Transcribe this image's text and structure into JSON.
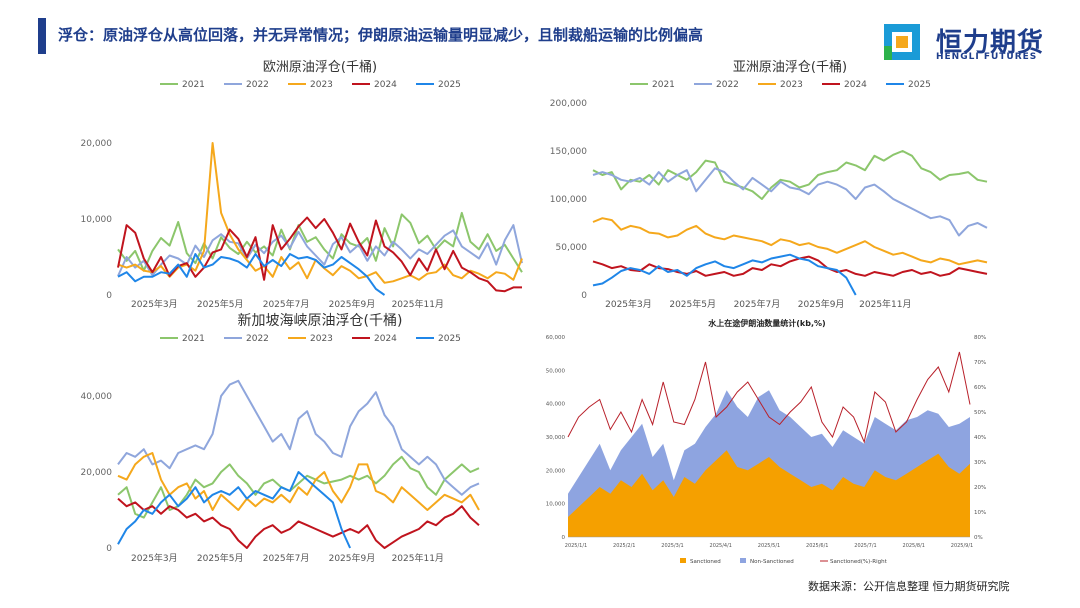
{
  "header": {
    "headline": "浮仓：原油浮仓从高位回落，并无异常情况；伊朗原油运输量明显减少，且制裁船运输的比例偏高",
    "logo_text": "恒力期货",
    "logo_sub": "HENGLI FUTURES"
  },
  "footer": {
    "source": "数据来源：公开信息整理  恒力期货研究院"
  },
  "colors": {
    "2021": "#8cc66c",
    "2022": "#8fa6dc",
    "2023": "#f5a81c",
    "2024": "#c0141e",
    "2025": "#1f86e8",
    "brand": "#1f3e8c",
    "sanctioned": "#f5a000",
    "non_sanctioned": "#8ea4e0",
    "ratio": "#b8202a"
  },
  "chart_data": [
    {
      "id": "europe",
      "type": "line",
      "title": "欧洲原油浮仓(千桶)",
      "yticks": [
        "0",
        "10,000",
        "20,000"
      ],
      "ylim": [
        0,
        20000
      ],
      "xticks": [
        "2025年3月",
        "2025年5月",
        "2025年7月",
        "2025年9月",
        "2025年11月"
      ],
      "series": [
        {
          "name": "2021",
          "values": [
            6000,
            4500,
            5800,
            3200,
            5800,
            7500,
            6500,
            9600,
            5500,
            4200,
            6800,
            4800,
            7600,
            6200,
            5400,
            7000,
            5600,
            6400,
            5200,
            8600,
            6000,
            9200,
            7000,
            7600,
            6000,
            4800,
            8000,
            6800,
            6400,
            7500,
            4500,
            8800,
            6400,
            10600,
            9500,
            6800,
            7800,
            6000,
            7200,
            6400,
            10800,
            7000,
            6000,
            8000,
            5800,
            6600,
            4800,
            3000
          ]
        },
        {
          "name": "2022",
          "values": [
            2500,
            5000,
            3600,
            4500,
            2600,
            4000,
            5200,
            4800,
            4000,
            6500,
            5000,
            7200,
            8000,
            7000,
            6800,
            4800,
            6600,
            5500,
            7000,
            7800,
            6200,
            8300,
            6400,
            5200,
            4000,
            6700,
            7600,
            5600,
            6600,
            4500,
            6400,
            5200,
            7000,
            6000,
            4800,
            6000,
            5400,
            6600,
            7800,
            8500,
            6400,
            5600,
            4800,
            6800,
            4000,
            7200,
            9200,
            4200
          ]
        },
        {
          "name": "2023",
          "values": [
            4000,
            3600,
            4000,
            3200,
            3000,
            3800,
            2400,
            3600,
            4000,
            3200,
            5800,
            20000,
            10800,
            8000,
            6000,
            4600,
            3200,
            3800,
            2400,
            5000,
            3400,
            4300,
            2200,
            4600,
            3500,
            2600,
            3800,
            3200,
            2200,
            2500,
            3000,
            1600,
            1800,
            2200,
            2600,
            2000,
            2800,
            3000,
            4000,
            2600,
            2200,
            3200,
            2800,
            2200,
            3000,
            2800,
            2000,
            4800
          ]
        },
        {
          "name": "2024",
          "values": [
            3600,
            9200,
            8200,
            4800,
            3000,
            5000,
            2500,
            3800,
            4200,
            2400,
            3600,
            5600,
            6000,
            8600,
            7400,
            5000,
            7600,
            2000,
            9200,
            6000,
            7400,
            9000,
            10200,
            8800,
            10000,
            8200,
            6000,
            9400,
            7000,
            5200,
            9800,
            6400,
            5600,
            4400,
            2600,
            4800,
            3200,
            6000,
            3400,
            5800,
            3600,
            3000,
            2200,
            1800,
            600,
            500,
            1000,
            1000
          ]
        },
        {
          "name": "2025",
          "values": [
            2400,
            3000,
            1800,
            2400,
            2400,
            3000,
            2800,
            4000,
            2400,
            5400,
            3600,
            4000,
            5000,
            4800,
            4400,
            3600,
            5400,
            3800,
            4600,
            3800,
            5400,
            4800,
            5000,
            4600,
            3600,
            4000,
            5000,
            4200,
            3400,
            2400,
            800,
            0
          ]
        }
      ]
    },
    {
      "id": "asia",
      "type": "line",
      "title": "亚洲原油浮仓(千桶)",
      "yticks": [
        "0",
        "50,000",
        "100,000",
        "150,000",
        "200,000"
      ],
      "ylim": [
        0,
        200000
      ],
      "xticks": [
        "2025年3月",
        "2025年5月",
        "2025年7月",
        "2025年9月",
        "2025年11月"
      ],
      "series": [
        {
          "name": "2021",
          "values": [
            130000,
            125000,
            128000,
            110000,
            120000,
            118000,
            125000,
            115000,
            130000,
            125000,
            120000,
            128000,
            140000,
            138000,
            118000,
            115000,
            112000,
            108000,
            100000,
            112000,
            120000,
            118000,
            112000,
            115000,
            125000,
            128000,
            130000,
            138000,
            135000,
            130000,
            145000,
            140000,
            146000,
            150000,
            145000,
            132000,
            128000,
            120000,
            125000,
            126000,
            128000,
            120000,
            118000
          ]
        },
        {
          "name": "2022",
          "values": [
            125000,
            128000,
            125000,
            120000,
            118000,
            122000,
            115000,
            128000,
            118000,
            125000,
            130000,
            108000,
            120000,
            132000,
            128000,
            118000,
            110000,
            122000,
            115000,
            108000,
            118000,
            112000,
            110000,
            105000,
            115000,
            118000,
            115000,
            110000,
            100000,
            112000,
            115000,
            108000,
            100000,
            95000,
            90000,
            85000,
            80000,
            82000,
            78000,
            62000,
            72000,
            75000,
            70000
          ]
        },
        {
          "name": "2023",
          "values": [
            76000,
            80000,
            78000,
            68000,
            72000,
            70000,
            65000,
            64000,
            60000,
            62000,
            68000,
            72000,
            64000,
            60000,
            58000,
            62000,
            60000,
            58000,
            56000,
            52000,
            58000,
            56000,
            52000,
            54000,
            50000,
            48000,
            44000,
            48000,
            52000,
            56000,
            50000,
            46000,
            42000,
            44000,
            40000,
            36000,
            34000,
            38000,
            36000,
            32000,
            34000,
            36000,
            34000
          ]
        },
        {
          "name": "2024",
          "values": [
            35000,
            32000,
            28000,
            30000,
            26000,
            25000,
            32000,
            28000,
            27000,
            24000,
            22000,
            25000,
            20000,
            22000,
            24000,
            20000,
            22000,
            28000,
            26000,
            32000,
            30000,
            35000,
            38000,
            40000,
            36000,
            28000,
            24000,
            26000,
            22000,
            20000,
            24000,
            22000,
            20000,
            24000,
            26000,
            22000,
            24000,
            20000,
            22000,
            28000,
            26000,
            24000,
            22000
          ]
        },
        {
          "name": "2025",
          "values": [
            10000,
            12000,
            18000,
            25000,
            28000,
            26000,
            22000,
            30000,
            24000,
            26000,
            20000,
            28000,
            32000,
            35000,
            30000,
            28000,
            32000,
            36000,
            34000,
            38000,
            40000,
            42000,
            38000,
            36000,
            30000,
            28000,
            26000,
            18000,
            0
          ]
        }
      ]
    },
    {
      "id": "singapore",
      "type": "line",
      "title": "新加坡海峡原油浮仓(千桶)",
      "yticks": [
        "0",
        "20,000",
        "40,000"
      ],
      "ylim": [
        0,
        40000
      ],
      "xticks": [
        "2025年3月",
        "2025年5月",
        "2025年7月",
        "2025年9月",
        "2025年11月"
      ],
      "series": [
        {
          "name": "2021",
          "values": [
            14000,
            16000,
            9000,
            8000,
            12000,
            16000,
            10000,
            11000,
            14000,
            18000,
            16000,
            17000,
            20000,
            22000,
            19000,
            17000,
            14000,
            17000,
            18000,
            16000,
            15000,
            17000,
            19000,
            18000,
            17000,
            17500,
            18000,
            19000,
            18000,
            19000,
            17000,
            19000,
            22000,
            24000,
            21000,
            20000,
            16000,
            14000,
            18000,
            20000,
            22000,
            20000,
            21000
          ]
        },
        {
          "name": "2022",
          "values": [
            22000,
            25000,
            24000,
            26000,
            22000,
            23000,
            21000,
            25000,
            26000,
            27000,
            26000,
            30000,
            40000,
            43000,
            44000,
            40000,
            36000,
            32000,
            28000,
            30000,
            26000,
            34000,
            36000,
            30000,
            28000,
            25000,
            24000,
            32000,
            36000,
            38000,
            41000,
            35000,
            32000,
            26000,
            24000,
            22000,
            24000,
            22000,
            18000,
            16000,
            14000,
            16000,
            17000
          ]
        },
        {
          "name": "2023",
          "values": [
            19000,
            18000,
            22000,
            24000,
            25000,
            18000,
            14000,
            16000,
            17000,
            13000,
            15000,
            10000,
            14000,
            12000,
            10000,
            13000,
            11000,
            13000,
            12000,
            14000,
            12000,
            16000,
            14000,
            18000,
            20000,
            15000,
            12000,
            16000,
            22000,
            22000,
            15000,
            14000,
            12000,
            16000,
            14000,
            12000,
            10000,
            12000,
            14000,
            13000,
            12000,
            14000,
            10000
          ]
        },
        {
          "name": "2024",
          "values": [
            13000,
            11000,
            12000,
            10000,
            11000,
            9000,
            11000,
            10000,
            8000,
            9000,
            7000,
            8000,
            6000,
            5000,
            2000,
            0,
            3000,
            5000,
            6000,
            4000,
            5000,
            7000,
            6000,
            5000,
            4000,
            3000,
            4000,
            5000,
            4000,
            6000,
            2000,
            0,
            1500,
            3000,
            4000,
            5000,
            7000,
            6000,
            8000,
            9000,
            11000,
            8000,
            6000
          ]
        },
        {
          "name": "2025",
          "values": [
            1000,
            5000,
            7000,
            10000,
            9000,
            12000,
            14000,
            11000,
            13000,
            16000,
            12000,
            14000,
            15000,
            14000,
            16000,
            13000,
            15000,
            14000,
            13000,
            16000,
            15000,
            20000,
            18000,
            16000,
            14000,
            12000,
            5000,
            0
          ]
        }
      ]
    },
    {
      "id": "iran",
      "type": "area",
      "title": "水上在途伊朗油数量统计(kb,%)",
      "ylim": [
        0,
        60000
      ],
      "y2lim": [
        0,
        80
      ],
      "yticks": [
        "0",
        "10,000",
        "20,000",
        "30,000",
        "40,000",
        "50,000",
        "60,000"
      ],
      "y2ticks": [
        "0%",
        "10%",
        "20%",
        "30%",
        "40%",
        "50%",
        "60%",
        "70%",
        "80%"
      ],
      "xticks": [
        "2025/1/1",
        "2025/2/1",
        "2025/3/1",
        "2025/4/1",
        "2025/5/1",
        "2025/6/1",
        "2025/7/1",
        "2025/8/1",
        "2025/9/1"
      ],
      "series": [
        {
          "name": "Sanctioned",
          "values": [
            6000,
            9000,
            12000,
            15000,
            13000,
            17000,
            15000,
            19000,
            14000,
            17000,
            12000,
            18000,
            16000,
            20000,
            23000,
            26000,
            21000,
            20000,
            22000,
            24000,
            21000,
            19000,
            17000,
            15000,
            16000,
            14000,
            18000,
            16000,
            15000,
            20000,
            18000,
            17000,
            19000,
            21000,
            23000,
            25000,
            21000,
            19000,
            22000
          ]
        },
        {
          "name": "Non-Sanctioned",
          "values": [
            13000,
            18000,
            23000,
            28000,
            20000,
            26000,
            30000,
            34000,
            24000,
            28000,
            17000,
            26000,
            28000,
            33000,
            37000,
            44000,
            39000,
            36000,
            42000,
            44000,
            38000,
            36000,
            33000,
            30000,
            31000,
            27000,
            32000,
            30000,
            28000,
            36000,
            34000,
            32000,
            35000,
            36000,
            38000,
            37000,
            33000,
            34000,
            36000
          ]
        },
        {
          "name": "Sanctioned(%)-Right",
          "values": [
            40,
            48,
            52,
            55,
            43,
            50,
            42,
            55,
            45,
            62,
            46,
            45,
            55,
            70,
            48,
            52,
            58,
            62,
            55,
            48,
            45,
            50,
            54,
            60,
            46,
            40,
            52,
            48,
            38,
            58,
            54,
            42,
            46,
            55,
            63,
            68,
            58,
            74,
            53
          ]
        }
      ]
    }
  ]
}
